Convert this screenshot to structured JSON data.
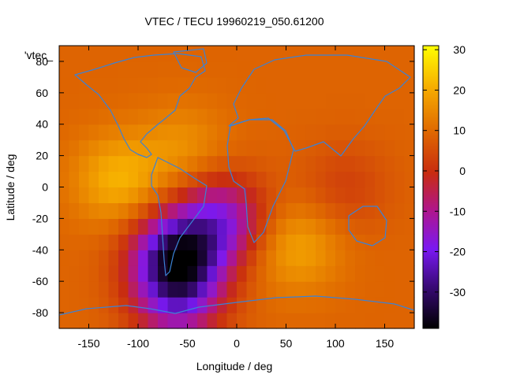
{
  "chart_data": {
    "type": "heatmap",
    "title": "VTEC / TECU 19960219_050.61200",
    "xlabel": "Longitude / deg",
    "ylabel": "Latitude / deg",
    "xlim": [
      -180,
      180
    ],
    "ylim": [
      -90,
      90
    ],
    "x_ticks": [
      -150,
      -100,
      -50,
      0,
      50,
      100,
      150
    ],
    "y_ticks": [
      -80,
      -60,
      -40,
      -20,
      0,
      20,
      40,
      60,
      80
    ],
    "colorbar": {
      "range": [
        -39,
        31
      ],
      "ticks": [
        30,
        20,
        10,
        0,
        -10,
        -20,
        -30
      ],
      "palette": "black-purple-red-orange-yellow"
    },
    "key_label": "'vtec_",
    "overlay": "continent outlines",
    "overlay_color": "#3b82d6",
    "features": [
      {
        "lon": -120,
        "lat": 5,
        "vtec": 21
      },
      {
        "lon": -55,
        "lat": 25,
        "vtec": 16
      },
      {
        "lon": -60,
        "lat": -45,
        "vtec": -33
      },
      {
        "lon": -15,
        "lat": -20,
        "vtec": -14
      },
      {
        "lon": 60,
        "lat": -38,
        "vtec": 19
      },
      {
        "lon": 110,
        "lat": 0,
        "vtec": 3
      },
      {
        "lon": -60,
        "lat": -75,
        "vtec": -10
      },
      {
        "lon": 40,
        "lat": 60,
        "vtec": 9
      }
    ],
    "background_vtec": 9
  }
}
